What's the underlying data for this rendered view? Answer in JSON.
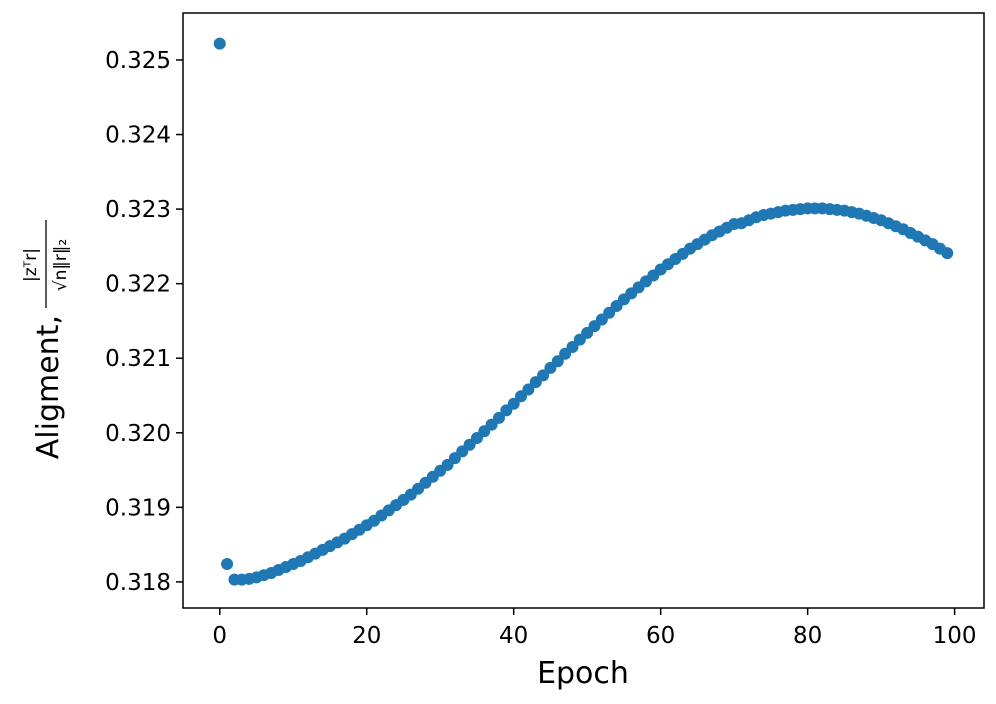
{
  "chart_data": {
    "type": "scatter",
    "title": "",
    "xlabel": "Epoch",
    "ylabel": {
      "prefix": "Aligment,",
      "numerator": "|zᵀr|",
      "denominator": "√n‖r‖₂"
    },
    "xlim": [
      -5,
      104
    ],
    "ylim": [
      0.31765,
      0.32563
    ],
    "xticks": [
      0,
      20,
      40,
      60,
      80,
      100
    ],
    "xtick_labels": [
      "0",
      "20",
      "40",
      "60",
      "80",
      "100"
    ],
    "yticks": [
      0.318,
      0.319,
      0.32,
      0.321,
      0.322,
      0.323,
      0.324,
      0.325
    ],
    "ytick_labels": [
      "0.318",
      "0.319",
      "0.320",
      "0.321",
      "0.322",
      "0.323",
      "0.324",
      "0.325"
    ],
    "grid": false,
    "marker_color": "#1f77b4",
    "series": [
      {
        "x": [
          0,
          1,
          2,
          3,
          4,
          5,
          6,
          7,
          8,
          9,
          10,
          11,
          12,
          13,
          14,
          15,
          16,
          17,
          18,
          19,
          20,
          21,
          22,
          23,
          24,
          25,
          26,
          27,
          28,
          29,
          30,
          31,
          32,
          33,
          34,
          35,
          36,
          37,
          38,
          39,
          40,
          41,
          42,
          43,
          44,
          45,
          46,
          47,
          48,
          49,
          50,
          51,
          52,
          53,
          54,
          55,
          56,
          57,
          58,
          59,
          60,
          61,
          62,
          63,
          64,
          65,
          66,
          67,
          68,
          69,
          70,
          71,
          72,
          73,
          74,
          75,
          76,
          77,
          78,
          79,
          80,
          81,
          82,
          83,
          84,
          85,
          86,
          87,
          88,
          89,
          90,
          91,
          92,
          93,
          94,
          95,
          96,
          97,
          98,
          99
        ],
        "y": [
          0.32522,
          0.31824,
          0.31803,
          0.31803,
          0.31804,
          0.31806,
          0.31809,
          0.31812,
          0.31816,
          0.3182,
          0.31824,
          0.31828,
          0.31833,
          0.31838,
          0.31843,
          0.31848,
          0.31853,
          0.31858,
          0.31864,
          0.3187,
          0.31876,
          0.31882,
          0.31889,
          0.31896,
          0.31903,
          0.3191,
          0.31917,
          0.31925,
          0.31933,
          0.31941,
          0.31949,
          0.31957,
          0.31966,
          0.31975,
          0.31984,
          0.31993,
          0.32002,
          0.32011,
          0.3202,
          0.3203,
          0.32039,
          0.32049,
          0.32058,
          0.32068,
          0.32077,
          0.32087,
          0.32096,
          0.32106,
          0.32115,
          0.32125,
          0.32134,
          0.32143,
          0.32152,
          0.32161,
          0.3217,
          0.32179,
          0.32187,
          0.32195,
          0.32203,
          0.32211,
          0.32219,
          0.32226,
          0.32233,
          0.3224,
          0.32247,
          0.32253,
          0.32259,
          0.32265,
          0.3227,
          0.32275,
          0.3228,
          0.32281,
          0.32285,
          0.32289,
          0.32292,
          0.32294,
          0.32296,
          0.32298,
          0.32299,
          0.323,
          0.32301,
          0.32301,
          0.32301,
          0.323,
          0.32299,
          0.32298,
          0.32296,
          0.32294,
          0.32291,
          0.32288,
          0.32285,
          0.32281,
          0.32277,
          0.32273,
          0.32268,
          0.32263,
          0.32258,
          0.32253,
          0.32247,
          0.32241
        ]
      }
    ]
  }
}
